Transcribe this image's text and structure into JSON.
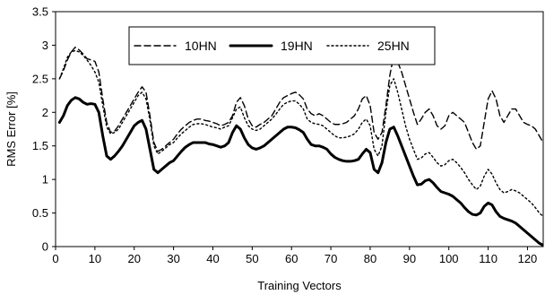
{
  "chart_data": {
    "type": "line",
    "xlabel": "Training Vectors",
    "ylabel": "RMS Error [%]",
    "xlim": [
      0,
      124
    ],
    "ylim": [
      0,
      3.5
    ],
    "xticks": [
      "0",
      "10",
      "20",
      "30",
      "40",
      "50",
      "60",
      "70",
      "80",
      "90",
      "100",
      "110",
      "120"
    ],
    "yticks": [
      "0",
      "0.5",
      "1",
      "1.5",
      "2",
      "2.5",
      "3",
      "3.5"
    ],
    "grid": false,
    "legend_position": "top-center",
    "series": [
      {
        "name": "10HN",
        "style": "dashed",
        "color": "#000000",
        "x": [
          1,
          2,
          3,
          4,
          5,
          6,
          7,
          8,
          9,
          10,
          11,
          12,
          13,
          14,
          15,
          16,
          17,
          18,
          19,
          20,
          21,
          22,
          23,
          24,
          25,
          26,
          27,
          28,
          29,
          30,
          31,
          32,
          33,
          34,
          35,
          36,
          37,
          38,
          39,
          40,
          41,
          42,
          43,
          44,
          45,
          46,
          47,
          48,
          49,
          50,
          51,
          52,
          53,
          54,
          55,
          56,
          57,
          58,
          59,
          60,
          61,
          62,
          63,
          64,
          65,
          66,
          67,
          68,
          69,
          70,
          71,
          72,
          73,
          74,
          75,
          76,
          77,
          78,
          79,
          80,
          81,
          82,
          83,
          84,
          85,
          86,
          87,
          88,
          89,
          90,
          91,
          92,
          93,
          94,
          95,
          96,
          97,
          98,
          99,
          100,
          101,
          102,
          103,
          104,
          105,
          106,
          107,
          108,
          109,
          110,
          111,
          112,
          113,
          114,
          115,
          116,
          117,
          118,
          119,
          120,
          121,
          122,
          123,
          124
        ],
        "values": [
          2.5,
          2.62,
          2.78,
          2.9,
          2.97,
          2.93,
          2.87,
          2.8,
          2.78,
          2.76,
          2.6,
          2.2,
          1.85,
          1.7,
          1.72,
          1.8,
          1.9,
          2.0,
          2.1,
          2.2,
          2.3,
          2.38,
          2.3,
          1.95,
          1.55,
          1.42,
          1.45,
          1.5,
          1.55,
          1.6,
          1.68,
          1.75,
          1.8,
          1.85,
          1.88,
          1.9,
          1.9,
          1.88,
          1.87,
          1.85,
          1.83,
          1.8,
          1.82,
          1.85,
          1.95,
          2.15,
          2.22,
          2.1,
          1.9,
          1.8,
          1.78,
          1.82,
          1.85,
          1.9,
          1.95,
          2.05,
          2.15,
          2.22,
          2.25,
          2.28,
          2.3,
          2.26,
          2.2,
          2.05,
          1.98,
          1.95,
          1.98,
          1.95,
          1.9,
          1.85,
          1.82,
          1.82,
          1.83,
          1.85,
          1.9,
          1.95,
          2.05,
          2.2,
          2.25,
          2.1,
          1.7,
          1.6,
          1.7,
          2.1,
          2.55,
          2.85,
          2.75,
          2.6,
          2.4,
          2.2,
          2.0,
          1.82,
          1.9,
          2.0,
          2.05,
          1.95,
          1.8,
          1.75,
          1.8,
          1.95,
          2.0,
          1.95,
          1.9,
          1.85,
          1.7,
          1.55,
          1.45,
          1.5,
          1.85,
          2.2,
          2.32,
          2.2,
          1.95,
          1.85,
          1.95,
          2.05,
          2.05,
          1.95,
          1.85,
          1.82,
          1.8,
          1.75,
          1.65,
          1.55
        ]
      },
      {
        "name": "19HN",
        "style": "solid-thick",
        "color": "#000000",
        "x": [
          1,
          2,
          3,
          4,
          5,
          6,
          7,
          8,
          9,
          10,
          11,
          12,
          13,
          14,
          15,
          16,
          17,
          18,
          19,
          20,
          21,
          22,
          23,
          24,
          25,
          26,
          27,
          28,
          29,
          30,
          31,
          32,
          33,
          34,
          35,
          36,
          37,
          38,
          39,
          40,
          41,
          42,
          43,
          44,
          45,
          46,
          47,
          48,
          49,
          50,
          51,
          52,
          53,
          54,
          55,
          56,
          57,
          58,
          59,
          60,
          61,
          62,
          63,
          64,
          65,
          66,
          67,
          68,
          69,
          70,
          71,
          72,
          73,
          74,
          75,
          76,
          77,
          78,
          79,
          80,
          81,
          82,
          83,
          84,
          85,
          86,
          87,
          88,
          89,
          90,
          91,
          92,
          93,
          94,
          95,
          96,
          97,
          98,
          99,
          100,
          101,
          102,
          103,
          104,
          105,
          106,
          107,
          108,
          109,
          110,
          111,
          112,
          113,
          114,
          115,
          116,
          117,
          118,
          119,
          120,
          121,
          122,
          123,
          124
        ],
        "values": [
          1.85,
          1.95,
          2.1,
          2.18,
          2.22,
          2.2,
          2.15,
          2.12,
          2.13,
          2.12,
          2.0,
          1.65,
          1.35,
          1.3,
          1.35,
          1.42,
          1.5,
          1.6,
          1.7,
          1.8,
          1.85,
          1.88,
          1.75,
          1.45,
          1.15,
          1.1,
          1.15,
          1.2,
          1.25,
          1.28,
          1.35,
          1.42,
          1.48,
          1.52,
          1.55,
          1.55,
          1.55,
          1.55,
          1.53,
          1.52,
          1.5,
          1.48,
          1.5,
          1.55,
          1.7,
          1.8,
          1.75,
          1.62,
          1.52,
          1.47,
          1.45,
          1.47,
          1.5,
          1.55,
          1.6,
          1.65,
          1.7,
          1.75,
          1.78,
          1.78,
          1.77,
          1.74,
          1.7,
          1.6,
          1.52,
          1.5,
          1.5,
          1.48,
          1.45,
          1.38,
          1.33,
          1.3,
          1.28,
          1.27,
          1.27,
          1.28,
          1.3,
          1.38,
          1.45,
          1.4,
          1.15,
          1.1,
          1.25,
          1.55,
          1.75,
          1.78,
          1.65,
          1.5,
          1.35,
          1.2,
          1.05,
          0.92,
          0.93,
          0.98,
          1.0,
          0.95,
          0.88,
          0.82,
          0.8,
          0.78,
          0.75,
          0.7,
          0.65,
          0.58,
          0.52,
          0.48,
          0.47,
          0.5,
          0.6,
          0.65,
          0.62,
          0.52,
          0.45,
          0.42,
          0.4,
          0.38,
          0.35,
          0.3,
          0.25,
          0.2,
          0.15,
          0.1,
          0.05,
          0.02
        ]
      },
      {
        "name": "25HN",
        "style": "dotted",
        "color": "#000000",
        "x": [
          1,
          2,
          3,
          4,
          5,
          6,
          7,
          8,
          9,
          10,
          11,
          12,
          13,
          14,
          15,
          16,
          17,
          18,
          19,
          20,
          21,
          22,
          23,
          24,
          25,
          26,
          27,
          28,
          29,
          30,
          31,
          32,
          33,
          34,
          35,
          36,
          37,
          38,
          39,
          40,
          41,
          42,
          43,
          44,
          45,
          46,
          47,
          48,
          49,
          50,
          51,
          52,
          53,
          54,
          55,
          56,
          57,
          58,
          59,
          60,
          61,
          62,
          63,
          64,
          65,
          66,
          67,
          68,
          69,
          70,
          71,
          72,
          73,
          74,
          75,
          76,
          77,
          78,
          79,
          80,
          81,
          82,
          83,
          84,
          85,
          86,
          87,
          88,
          89,
          90,
          91,
          92,
          93,
          94,
          95,
          96,
          97,
          98,
          99,
          100,
          101,
          102,
          103,
          104,
          105,
          106,
          107,
          108,
          109,
          110,
          111,
          112,
          113,
          114,
          115,
          116,
          117,
          118,
          119,
          120,
          121,
          122,
          123,
          124
        ],
        "values": [
          2.5,
          2.65,
          2.82,
          2.9,
          2.92,
          2.9,
          2.85,
          2.78,
          2.7,
          2.6,
          2.45,
          2.1,
          1.78,
          1.68,
          1.7,
          1.75,
          1.85,
          1.95,
          2.05,
          2.15,
          2.25,
          2.3,
          2.2,
          1.88,
          1.5,
          1.38,
          1.42,
          1.47,
          1.52,
          1.55,
          1.62,
          1.68,
          1.73,
          1.78,
          1.82,
          1.83,
          1.83,
          1.82,
          1.8,
          1.78,
          1.77,
          1.75,
          1.78,
          1.8,
          1.92,
          2.05,
          2.08,
          1.92,
          1.8,
          1.75,
          1.73,
          1.75,
          1.8,
          1.85,
          1.9,
          1.97,
          2.05,
          2.12,
          2.15,
          2.17,
          2.17,
          2.12,
          2.05,
          1.9,
          1.85,
          1.83,
          1.82,
          1.8,
          1.75,
          1.7,
          1.65,
          1.62,
          1.62,
          1.63,
          1.65,
          1.68,
          1.75,
          1.85,
          1.9,
          1.8,
          1.45,
          1.35,
          1.5,
          2.0,
          2.4,
          2.5,
          2.3,
          2.05,
          1.8,
          1.6,
          1.45,
          1.3,
          1.32,
          1.38,
          1.4,
          1.33,
          1.25,
          1.2,
          1.22,
          1.28,
          1.3,
          1.25,
          1.18,
          1.1,
          1.0,
          0.92,
          0.85,
          0.9,
          1.05,
          1.15,
          1.08,
          0.95,
          0.85,
          0.8,
          0.82,
          0.85,
          0.83,
          0.8,
          0.75,
          0.7,
          0.65,
          0.58,
          0.5,
          0.45
        ]
      }
    ]
  }
}
